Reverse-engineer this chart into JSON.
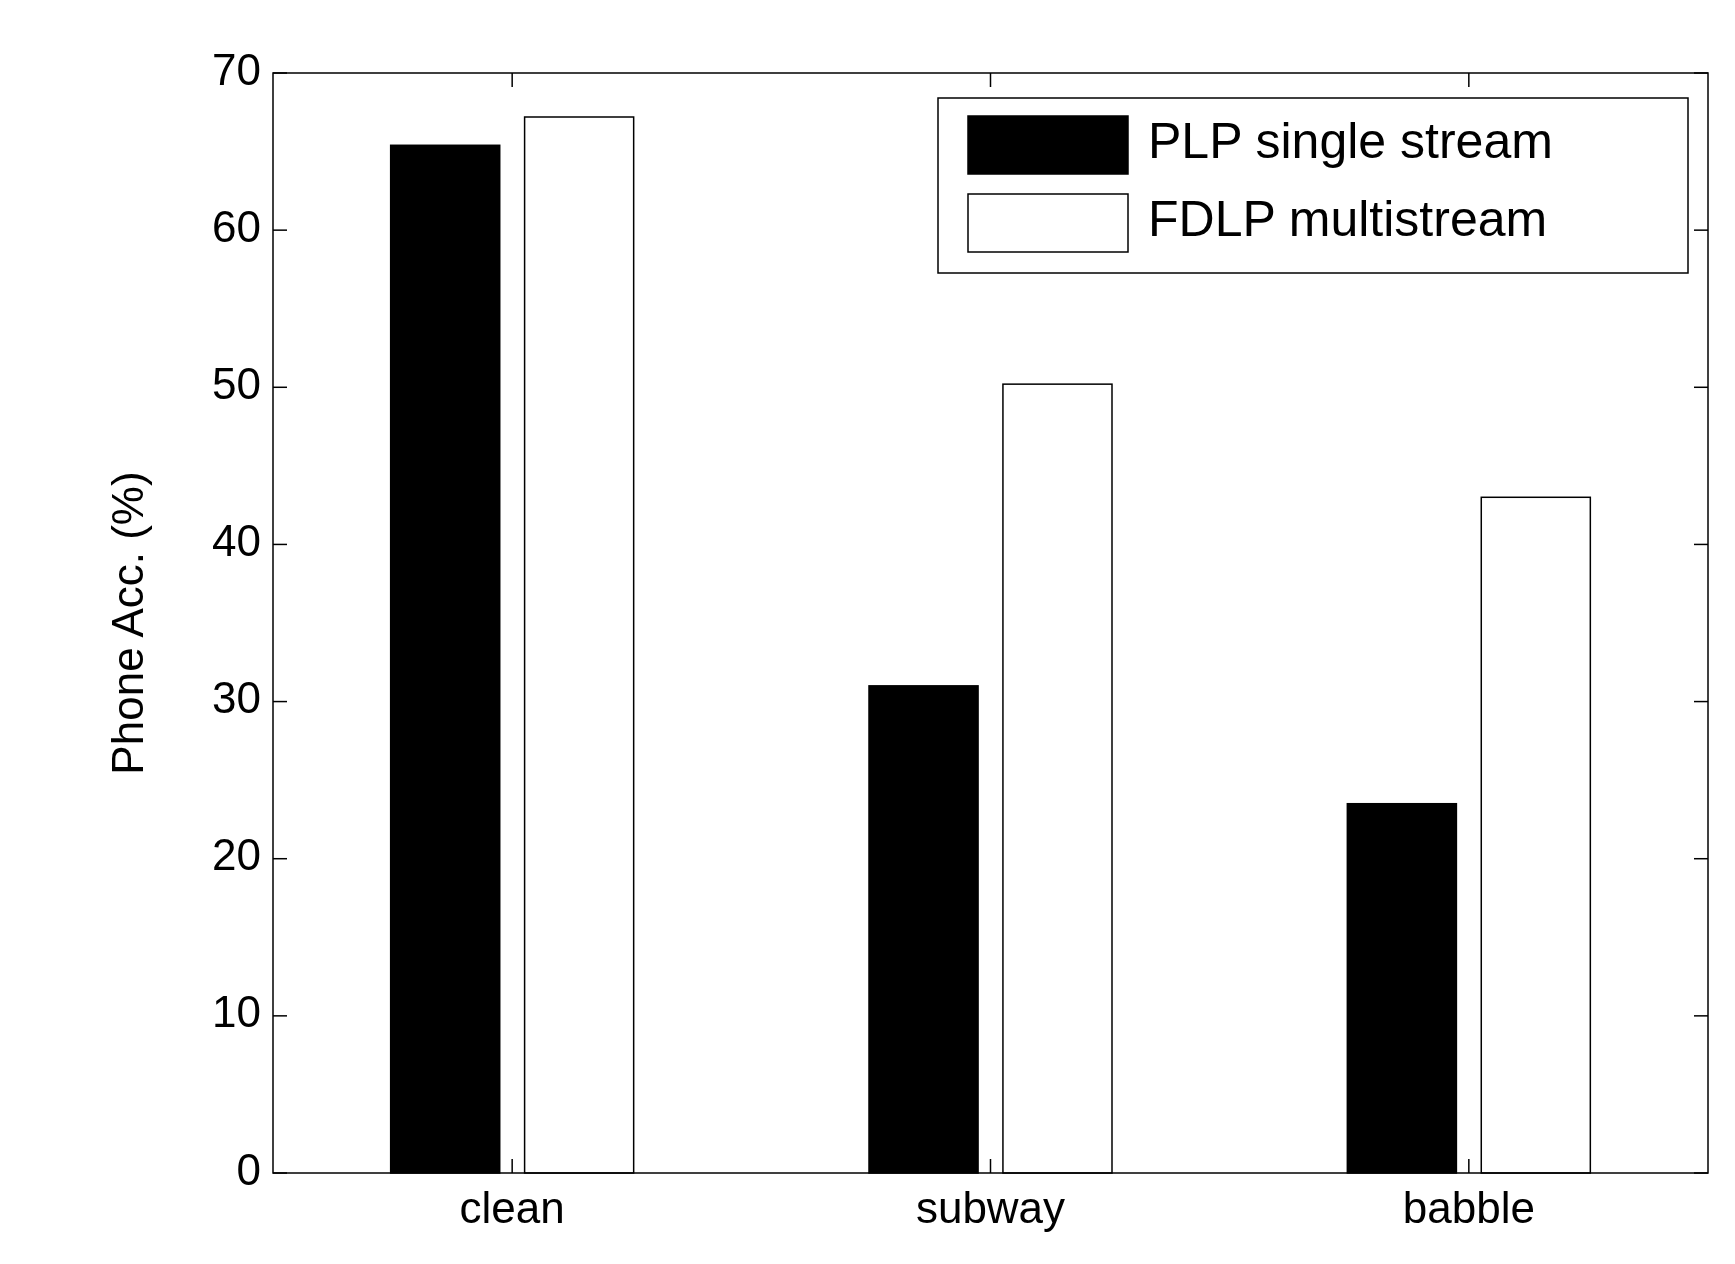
{
  "chart_data": {
    "type": "bar",
    "ylabel": "Phone Acc. (%)",
    "categories": [
      "clean",
      "subway",
      "babble"
    ],
    "series": [
      {
        "name": "PLP single stream",
        "color": "#000000",
        "values": [
          65.4,
          31.0,
          23.5
        ]
      },
      {
        "name": "FDLP multistream",
        "color": "#ffffff",
        "values": [
          67.2,
          50.2,
          43.0
        ]
      }
    ],
    "ylim": [
      0,
      70
    ],
    "yticks": [
      0,
      10,
      20,
      30,
      40,
      50,
      60,
      70
    ],
    "legend": "top right",
    "grid": false
  }
}
